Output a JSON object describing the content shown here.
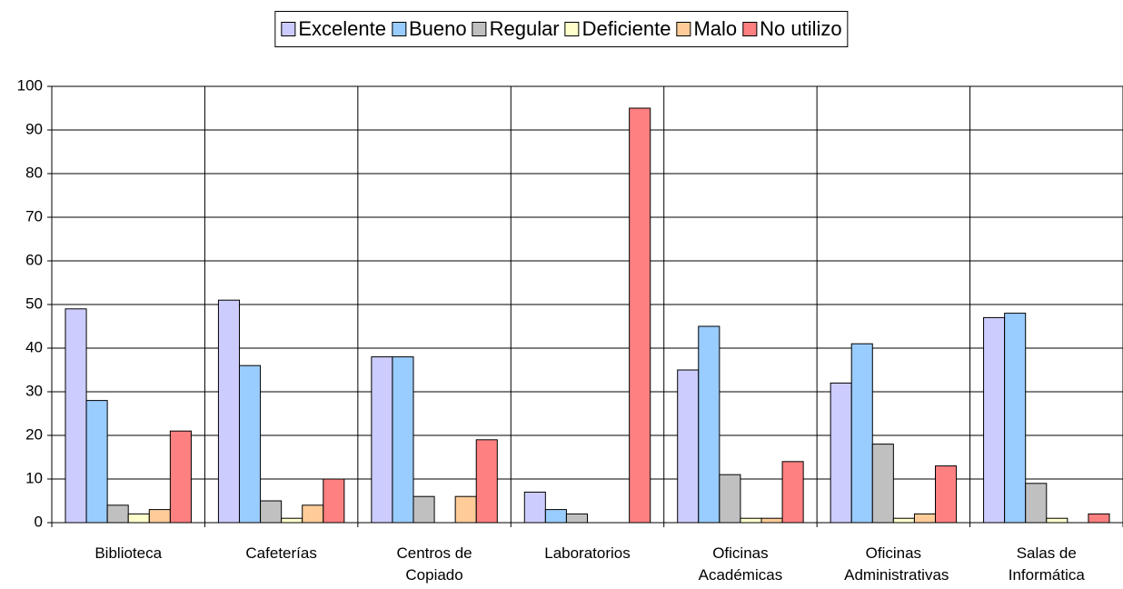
{
  "chart_data": {
    "type": "bar",
    "categories": [
      "Biblioteca",
      "Cafeterías",
      "Centros de Copiado",
      "Laboratorios",
      "Oficinas Académicas",
      "Oficinas Administrativas",
      "Salas de Informática"
    ],
    "series": [
      {
        "name": "Excelente",
        "color": "#ccccff",
        "values": [
          49,
          51,
          38,
          7,
          35,
          32,
          47
        ]
      },
      {
        "name": "Bueno",
        "color": "#99ccff",
        "values": [
          28,
          36,
          38,
          3,
          45,
          41,
          48
        ]
      },
      {
        "name": "Regular",
        "color": "#c0c0c0",
        "values": [
          4,
          5,
          6,
          2,
          11,
          18,
          9
        ]
      },
      {
        "name": "Deficiente",
        "color": "#ffffcc",
        "values": [
          2,
          1,
          0,
          0,
          1,
          1,
          1
        ]
      },
      {
        "name": "Malo",
        "color": "#ffcc99",
        "values": [
          3,
          4,
          6,
          0,
          1,
          2,
          0
        ]
      },
      {
        "name": "No utilizo",
        "color": "#ff8080",
        "values": [
          21,
          10,
          19,
          95,
          14,
          13,
          2
        ]
      }
    ],
    "ylim": [
      0,
      100
    ],
    "yticks": [
      0,
      10,
      20,
      30,
      40,
      50,
      60,
      70,
      80,
      90,
      100
    ],
    "grid": true,
    "legend": "top"
  }
}
